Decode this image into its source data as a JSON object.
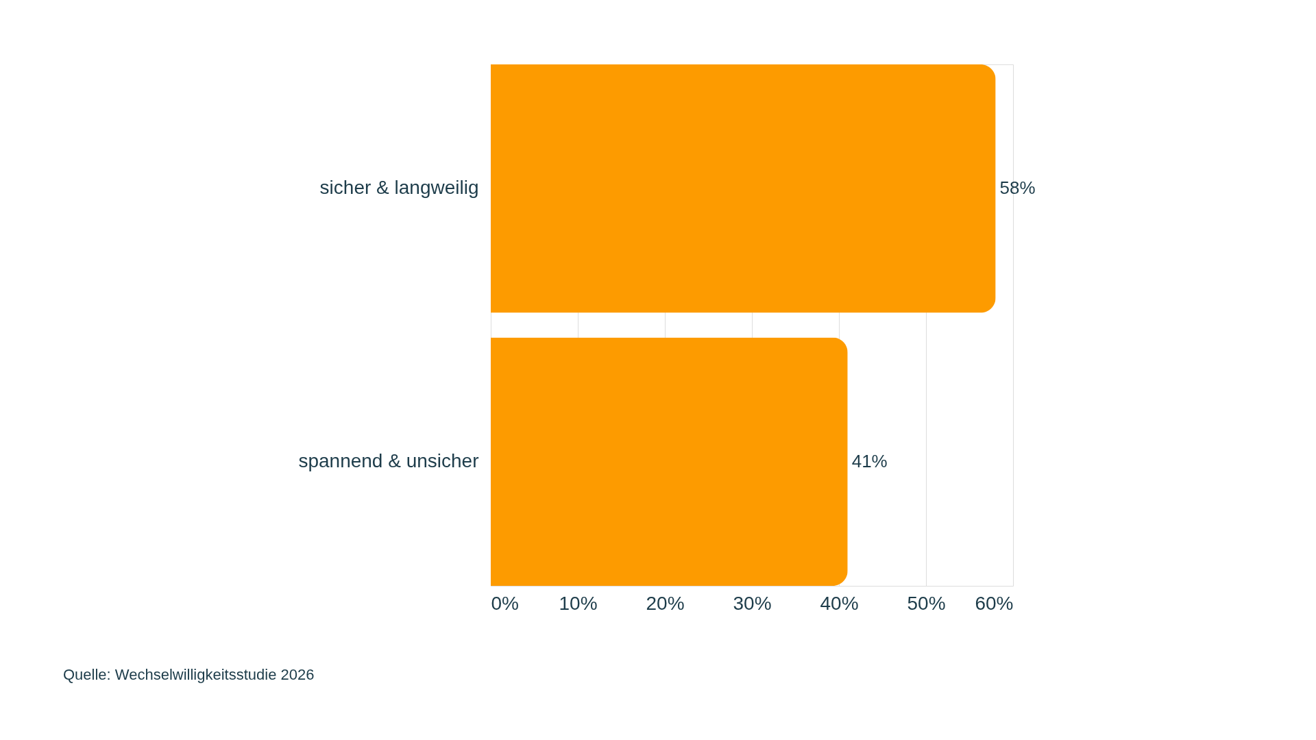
{
  "chart_data": {
    "type": "bar",
    "orientation": "horizontal",
    "categories": [
      "sicher & langweilig",
      "spannend & unsicher"
    ],
    "values": [
      58,
      41
    ],
    "color": "#fd9b00",
    "value_labels": [
      "58%",
      "41%"
    ],
    "xlim": [
      0,
      60
    ],
    "xticks": [
      {
        "value": 0,
        "label": "0%"
      },
      {
        "value": 10,
        "label": "10%"
      },
      {
        "value": 20,
        "label": "20%"
      },
      {
        "value": 30,
        "label": "30%"
      },
      {
        "value": 40,
        "label": "40%"
      },
      {
        "value": 50,
        "label": "50%"
      },
      {
        "value": 60,
        "label": "60%"
      }
    ],
    "grid": "x",
    "annotations": [
      "Quelle: Wechselwilligkeitsstudie 2026"
    ]
  }
}
